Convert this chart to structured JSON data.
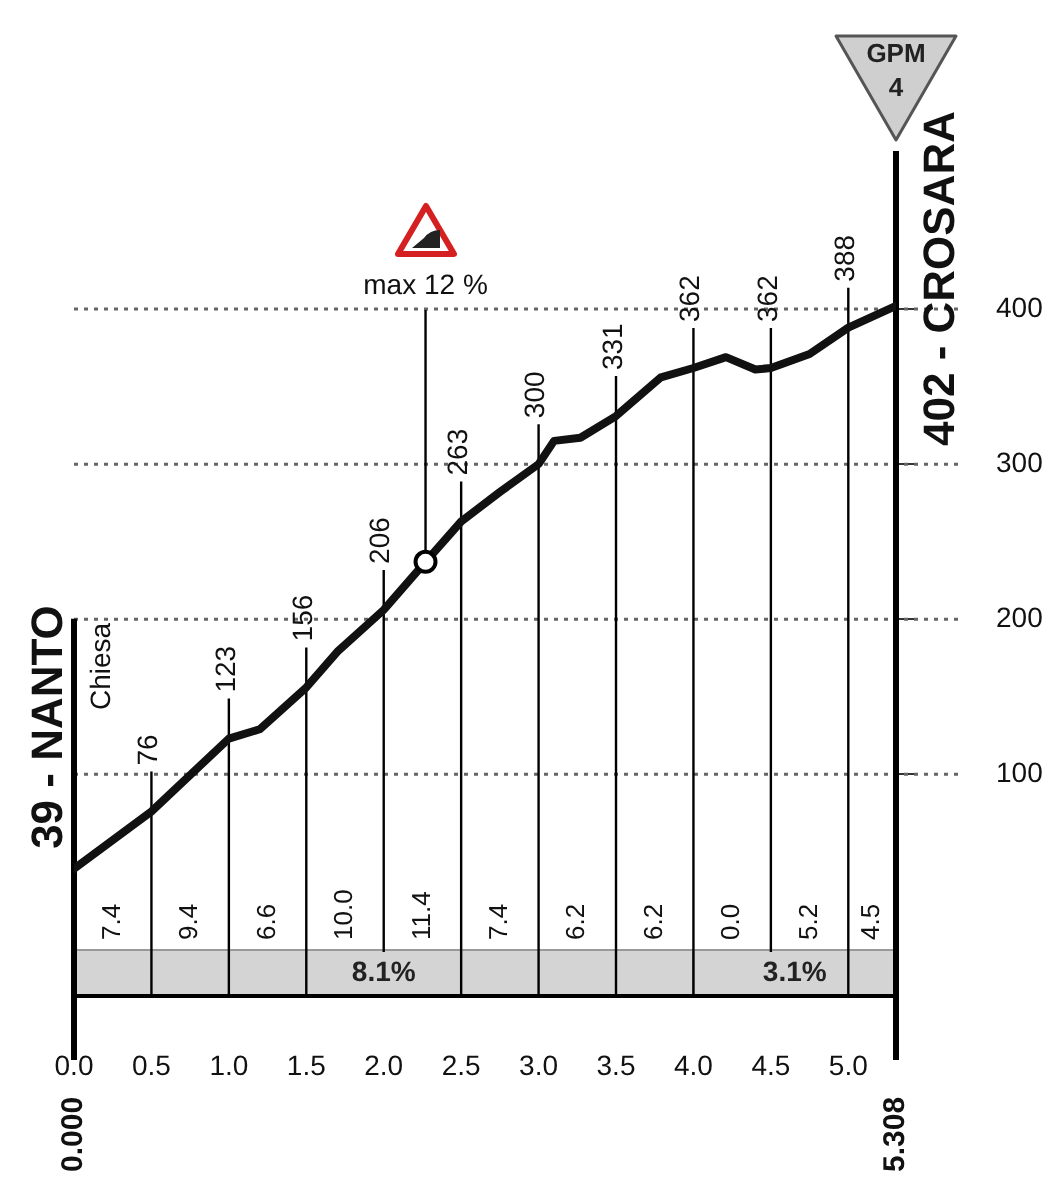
{
  "chart_data": {
    "type": "line",
    "xlabel": null,
    "x": [
      0,
      0.5,
      1.0,
      1.2,
      1.5,
      1.7,
      2.0,
      2.27,
      2.5,
      2.75,
      3.0,
      3.1,
      3.27,
      3.5,
      3.79,
      4.0,
      4.21,
      4.4,
      4.5,
      4.75,
      5.0,
      5.308
    ],
    "series": [
      {
        "color": "#111111",
        "values": [
          39,
          76,
          123,
          129,
          156,
          179,
          206,
          237,
          263,
          282,
          300,
          315,
          317,
          331,
          356,
          362,
          369,
          361,
          362,
          371,
          388,
          402
        ],
        "value_labels": [
          "39 - NANTO",
          "76",
          "123",
          null,
          "156",
          null,
          "206",
          null,
          "263",
          null,
          "300",
          null,
          null,
          "331",
          null,
          "362",
          null,
          null,
          "362",
          null,
          "388",
          "402 - CROSARA"
        ]
      }
    ],
    "xlim": [
      0,
      5.308
    ],
    "xticks": [
      {
        "value": 0,
        "label": "0.0"
      },
      {
        "value": 0.5,
        "label": "0.5"
      },
      {
        "value": 1,
        "label": "1.0"
      },
      {
        "value": 1.5,
        "label": "1.5"
      },
      {
        "value": 2,
        "label": "2.0"
      },
      {
        "value": 2.5,
        "label": "2.5"
      },
      {
        "value": 3,
        "label": "3.0"
      },
      {
        "value": 3.5,
        "label": "3.5"
      },
      {
        "value": 4,
        "label": "4.0"
      },
      {
        "value": 4.5,
        "label": "4.5"
      },
      {
        "value": 5,
        "label": "5.0"
      }
    ],
    "x2lim": [
      0,
      5.308
    ],
    "x2ticks": [
      {
        "value": 0,
        "label": "0.000"
      },
      {
        "value": 5.308,
        "label": "5.308"
      }
    ],
    "ylim": [
      -43,
      500
    ],
    "yticks": [
      100,
      200,
      300,
      400
    ],
    "grid": true,
    "legend": false,
    "marker": "none",
    "line_style": "solid",
    "bands": [
      {
        "axis": "x",
        "from": 0,
        "to": 4.0,
        "label": "8.1%",
        "color": "#d4d4d4"
      },
      {
        "axis": "x",
        "from": 4.0,
        "to": 5.308,
        "label": "3.1%",
        "color": "#d4d4d4"
      }
    ],
    "annotations": [
      "Chiesa",
      "GPM 4",
      "7.4",
      "9.4",
      "6.6",
      "10.0",
      "11.4",
      "7.4",
      "6.2",
      "6.2",
      "0.0",
      "5.2",
      "4.5",
      {
        "text": "max 12 %",
        "x": 2.27,
        "y": 237
      }
    ]
  }
}
